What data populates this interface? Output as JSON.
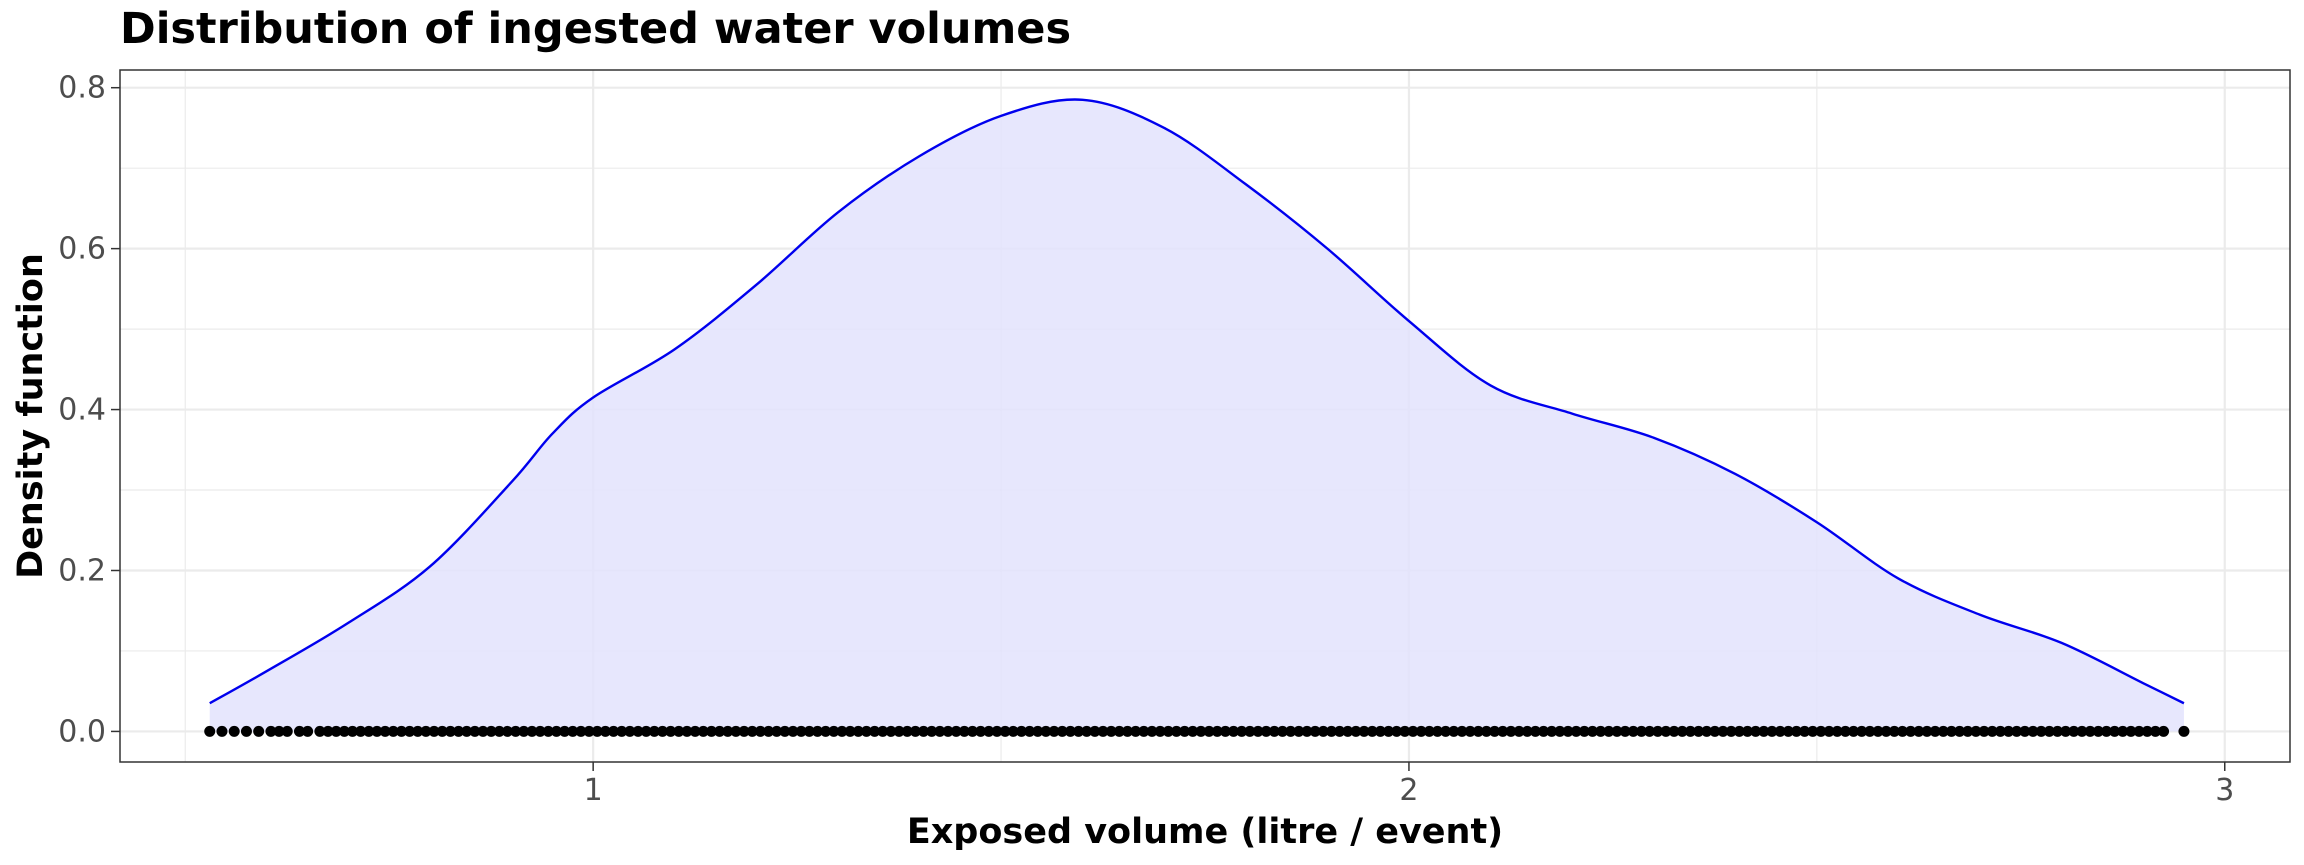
{
  "chart_data": {
    "type": "area",
    "title": "Distribution of ingested water volumes",
    "xlabel": "Exposed volume (litre / event)",
    "ylabel": "Density function",
    "xlim": [
      0.42,
      3.08
    ],
    "ylim": [
      -0.038,
      0.822
    ],
    "x_ticks": [
      1,
      2,
      3
    ],
    "x_tick_labels": [
      "1",
      "2",
      "3"
    ],
    "y_ticks": [
      0.0,
      0.2,
      0.4,
      0.6,
      0.8
    ],
    "y_tick_labels": [
      "0.0",
      "0.2",
      "0.4",
      "0.6",
      "0.8"
    ],
    "grid": true,
    "legend": "none",
    "colors": {
      "line": "#0000ee",
      "fill": "#e3e3fd",
      "points": "#000000",
      "grid": "#ebebeb"
    },
    "series": [
      {
        "values": [
          {
            "x": 0.53,
            "y": 0.035
          },
          {
            "x": 0.6,
            "y": 0.075
          },
          {
            "x": 0.7,
            "y": 0.135
          },
          {
            "x": 0.8,
            "y": 0.205
          },
          {
            "x": 0.9,
            "y": 0.31
          },
          {
            "x": 0.95,
            "y": 0.37
          },
          {
            "x": 1.0,
            "y": 0.415
          },
          {
            "x": 1.1,
            "y": 0.475
          },
          {
            "x": 1.2,
            "y": 0.555
          },
          {
            "x": 1.3,
            "y": 0.645
          },
          {
            "x": 1.4,
            "y": 0.715
          },
          {
            "x": 1.5,
            "y": 0.765
          },
          {
            "x": 1.6,
            "y": 0.785
          },
          {
            "x": 1.7,
            "y": 0.75
          },
          {
            "x": 1.8,
            "y": 0.68
          },
          {
            "x": 1.9,
            "y": 0.6
          },
          {
            "x": 2.0,
            "y": 0.51
          },
          {
            "x": 2.1,
            "y": 0.43
          },
          {
            "x": 2.2,
            "y": 0.395
          },
          {
            "x": 2.3,
            "y": 0.365
          },
          {
            "x": 2.4,
            "y": 0.32
          },
          {
            "x": 2.5,
            "y": 0.26
          },
          {
            "x": 2.6,
            "y": 0.19
          },
          {
            "x": 2.7,
            "y": 0.145
          },
          {
            "x": 2.8,
            "y": 0.11
          },
          {
            "x": 2.9,
            "y": 0.06
          },
          {
            "x": 2.95,
            "y": 0.035
          }
        ]
      }
    ],
    "rug_points": {
      "y": 0.0,
      "x": [
        0.53,
        0.545,
        0.56,
        0.575,
        0.59,
        0.605,
        0.615,
        0.625,
        0.64,
        0.65,
        0.665,
        0.675,
        0.685,
        0.695,
        0.705,
        0.715,
        0.725,
        0.735,
        0.745,
        0.755,
        0.765,
        0.775,
        0.785,
        0.795,
        0.805,
        0.815,
        0.825,
        0.835,
        0.845,
        0.855,
        0.865,
        0.875,
        0.885,
        0.895,
        0.905,
        0.915,
        0.925,
        0.935,
        0.945,
        0.955,
        0.965,
        0.975,
        0.985,
        0.995,
        1.005,
        1.015,
        1.025,
        1.035,
        1.045,
        1.055,
        1.065,
        1.075,
        1.085,
        1.095,
        1.105,
        1.115,
        1.125,
        1.135,
        1.145,
        1.155,
        1.165,
        1.175,
        1.185,
        1.195,
        1.205,
        1.215,
        1.225,
        1.235,
        1.245,
        1.255,
        1.265,
        1.275,
        1.285,
        1.295,
        1.305,
        1.315,
        1.325,
        1.335,
        1.345,
        1.355,
        1.365,
        1.375,
        1.385,
        1.395,
        1.405,
        1.415,
        1.425,
        1.435,
        1.445,
        1.455,
        1.465,
        1.475,
        1.485,
        1.495,
        1.505,
        1.515,
        1.525,
        1.535,
        1.545,
        1.555,
        1.565,
        1.575,
        1.585,
        1.595,
        1.605,
        1.615,
        1.625,
        1.635,
        1.645,
        1.655,
        1.665,
        1.675,
        1.685,
        1.695,
        1.705,
        1.715,
        1.725,
        1.735,
        1.745,
        1.755,
        1.765,
        1.775,
        1.785,
        1.795,
        1.805,
        1.815,
        1.825,
        1.835,
        1.845,
        1.855,
        1.865,
        1.875,
        1.885,
        1.895,
        1.905,
        1.915,
        1.925,
        1.935,
        1.945,
        1.955,
        1.965,
        1.975,
        1.985,
        1.995,
        2.005,
        2.015,
        2.025,
        2.035,
        2.045,
        2.055,
        2.065,
        2.075,
        2.085,
        2.095,
        2.105,
        2.115,
        2.125,
        2.135,
        2.145,
        2.155,
        2.165,
        2.175,
        2.185,
        2.195,
        2.205,
        2.215,
        2.225,
        2.235,
        2.245,
        2.255,
        2.265,
        2.275,
        2.285,
        2.295,
        2.305,
        2.315,
        2.325,
        2.335,
        2.345,
        2.355,
        2.365,
        2.375,
        2.385,
        2.395,
        2.405,
        2.415,
        2.425,
        2.435,
        2.445,
        2.455,
        2.465,
        2.475,
        2.485,
        2.495,
        2.505,
        2.515,
        2.525,
        2.535,
        2.545,
        2.555,
        2.565,
        2.575,
        2.585,
        2.595,
        2.605,
        2.615,
        2.625,
        2.635,
        2.645,
        2.655,
        2.665,
        2.675,
        2.685,
        2.695,
        2.705,
        2.715,
        2.725,
        2.735,
        2.745,
        2.755,
        2.765,
        2.775,
        2.785,
        2.795,
        2.805,
        2.815,
        2.825,
        2.835,
        2.845,
        2.855,
        2.865,
        2.875,
        2.885,
        2.895,
        2.905,
        2.915,
        2.925,
        2.95
      ]
    }
  }
}
